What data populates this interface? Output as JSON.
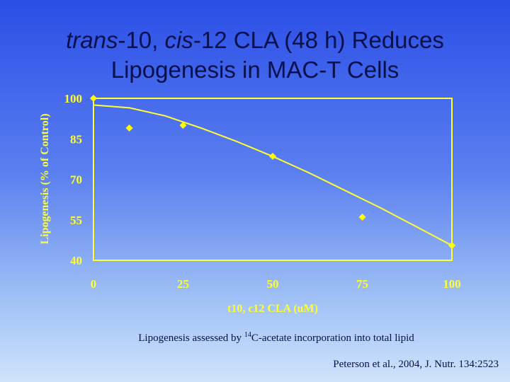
{
  "slide": {
    "title_line1_prefix_italic": "trans",
    "title_line1_mid": "-10, ",
    "title_line1_italic2": "cis",
    "title_line1_rest": "-12 CLA (48 h) Reduces",
    "title_line2": "Lipogenesis in MAC-T Cells",
    "caption_prefix": "Lipogenesis assessed by ",
    "caption_superscript": "14",
    "caption_rest": "C-acetate incorporation into total lipid",
    "citation": "Peterson et al., 2004, J. Nutr. 134:2523"
  },
  "colors": {
    "plot_border": "#ffff33",
    "marker": "#ffff00",
    "curve": "#ffff33",
    "title_text": "#06104a"
  },
  "chart_data": {
    "type": "scatter",
    "xlabel": "t10, c12 CLA (uM)",
    "ylabel": "Lipogenesis (% of Control)",
    "xlim": [
      0,
      100
    ],
    "ylim": [
      40,
      100
    ],
    "x_ticks": [
      "0",
      "25",
      "50",
      "75",
      "100"
    ],
    "y_ticks": [
      "100",
      "85",
      "70",
      "55",
      "40"
    ],
    "x_tick_values": [
      0,
      25,
      50,
      75,
      100
    ],
    "y_tick_values": [
      100,
      85,
      70,
      55,
      40
    ],
    "points": [
      {
        "x": 0,
        "y": 100
      },
      {
        "x": 10,
        "y": 89
      },
      {
        "x": 25,
        "y": 90
      },
      {
        "x": 50,
        "y": 78.5
      },
      {
        "x": 75,
        "y": 56
      },
      {
        "x": 100,
        "y": 45.5
      }
    ],
    "trendline": {
      "x": [
        0,
        10,
        20,
        30,
        40,
        50,
        60,
        70,
        80,
        90,
        100
      ],
      "y": [
        97.5,
        96.5,
        93.5,
        89,
        84,
        78.5,
        72.5,
        66,
        59.5,
        52.5,
        45.5
      ]
    },
    "grid": false
  }
}
